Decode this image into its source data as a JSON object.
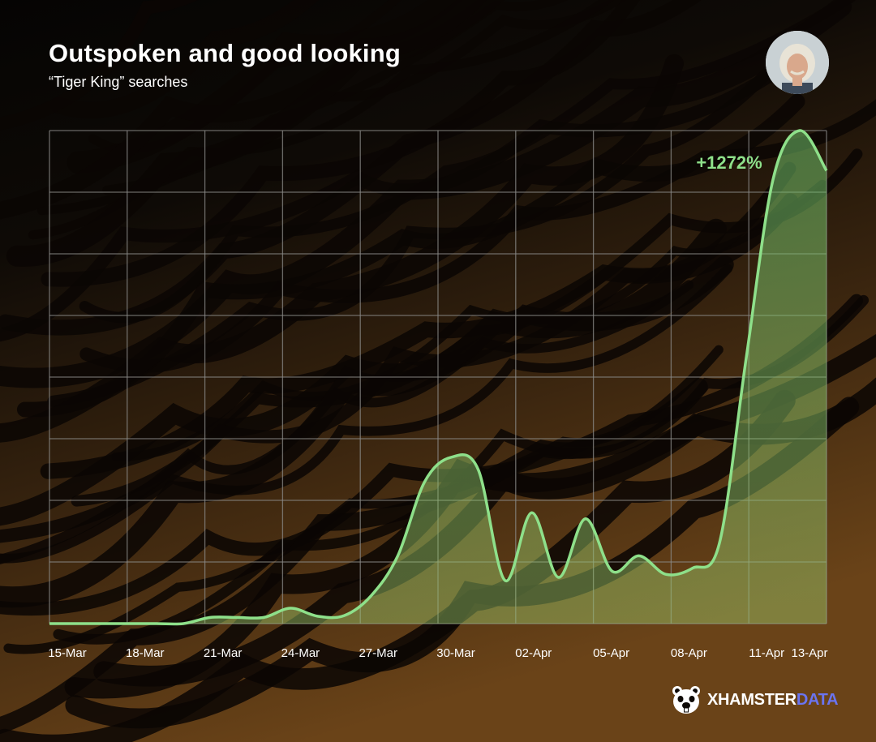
{
  "header": {
    "title": "Outspoken and good looking",
    "subtitle": "“Tiger King” searches"
  },
  "brand": {
    "name_part1": "XHAMSTER",
    "name_part2": "DATA",
    "accent_color": "#6a74f0",
    "icon": "hamster-face-icon"
  },
  "avatar": {
    "icon": "person-portrait-icon"
  },
  "chart_data": {
    "type": "area",
    "title": "Outspoken and good looking",
    "subtitle": "“Tiger King” searches",
    "xlabel": "",
    "ylabel": "",
    "x_ticks": [
      "15-Mar",
      "18-Mar",
      "21-Mar",
      "24-Mar",
      "27-Mar",
      "30-Mar",
      "02-Apr",
      "05-Apr",
      "08-Apr",
      "11-Apr",
      "13-Apr"
    ],
    "x": [
      "15-Mar",
      "16-Mar",
      "17-Mar",
      "18-Mar",
      "19-Mar",
      "20-Mar",
      "21-Mar",
      "22-Mar",
      "23-Mar",
      "24-Mar",
      "25-Mar",
      "26-Mar",
      "27-Mar",
      "28-Mar",
      "29-Mar",
      "30-Mar",
      "31-Mar",
      "01-Apr",
      "02-Apr",
      "03-Apr",
      "04-Apr",
      "05-Apr",
      "06-Apr",
      "07-Apr",
      "08-Apr",
      "09-Apr",
      "10-Apr",
      "11-Apr",
      "12-Apr",
      "13-Apr"
    ],
    "series": [
      {
        "values": [
          0,
          0,
          0,
          0,
          0,
          0,
          0.1,
          0.1,
          0.1,
          0.25,
          0.12,
          0.13,
          0.45,
          1.1,
          2.3,
          2.7,
          2.5,
          0.7,
          1.8,
          0.75,
          1.7,
          0.85,
          1.1,
          0.8,
          0.9,
          1.3,
          4.3,
          7.2,
          8,
          7.35
        ],
        "color": "#8ee08a"
      }
    ],
    "ylim": [
      0,
      8
    ],
    "grid": true,
    "annotations": [
      {
        "text": "+1272%",
        "at": "13-Apr"
      }
    ]
  }
}
